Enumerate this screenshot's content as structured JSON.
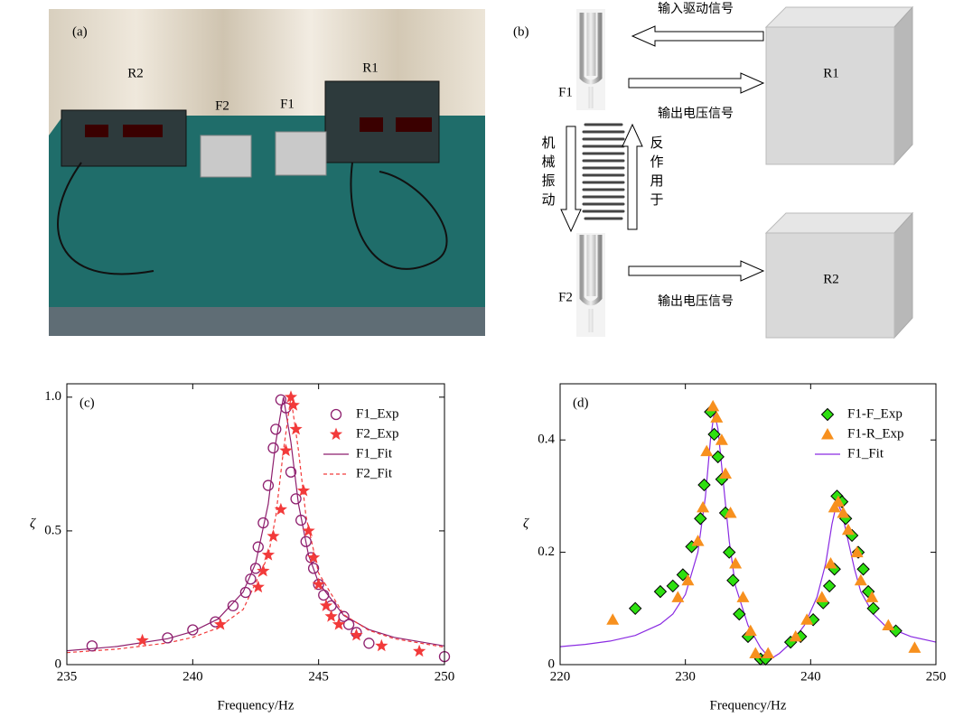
{
  "photo": {
    "panel_label": "(a)",
    "labels": [
      "R2",
      "F2",
      "F1",
      "R1"
    ]
  },
  "diagram": {
    "panel_label": "(b)",
    "forks": [
      "F1",
      "F2"
    ],
    "boxes": [
      "R1",
      "R2"
    ],
    "arrow_labels": [
      "输入驱动信号",
      "输出电压信号",
      "输出电压信号"
    ],
    "vertical_labels": [
      "机械振动",
      "反作用于"
    ]
  },
  "chart_data": [
    {
      "type": "scatter",
      "annotation": "(c)",
      "x_label": "Frequency/Hz",
      "y_label": "ζ",
      "xlim": [
        235,
        250
      ],
      "xticks": [
        235,
        240,
        245,
        250
      ],
      "ylim": [
        0,
        1.05
      ],
      "yticks": [
        0,
        0.5,
        {
          "value": 1,
          "label": "1.0"
        }
      ],
      "legend": "upper right",
      "series": [
        {
          "name": "F1_Exp",
          "type": "scatter",
          "marker": "circle",
          "color": "#8e1f6e",
          "x": [
            236.0,
            239.0,
            240.0,
            240.9,
            241.6,
            242.1,
            242.3,
            242.5,
            242.6,
            242.8,
            243.0,
            243.2,
            243.3,
            243.5,
            243.7,
            243.9,
            244.1,
            244.3,
            244.5,
            244.7,
            244.8,
            245.0,
            245.2,
            245.5,
            246.0,
            246.2,
            246.5,
            247.0,
            250.0
          ],
          "values": [
            0.07,
            0.1,
            0.13,
            0.16,
            0.22,
            0.27,
            0.32,
            0.36,
            0.44,
            0.53,
            0.67,
            0.81,
            0.88,
            0.99,
            0.96,
            0.72,
            0.62,
            0.54,
            0.46,
            0.4,
            0.36,
            0.3,
            0.26,
            0.22,
            0.18,
            0.15,
            0.12,
            0.08,
            0.03
          ]
        },
        {
          "name": "F2_Exp",
          "type": "scatter",
          "marker": "star",
          "color": "#f23a3a",
          "x": [
            238.0,
            241.1,
            242.6,
            242.8,
            243.0,
            243.2,
            243.5,
            243.7,
            243.9,
            244.0,
            244.1,
            244.4,
            244.6,
            244.8,
            245.0,
            245.3,
            245.5,
            245.8,
            246.5,
            247.5,
            249.0
          ],
          "values": [
            0.09,
            0.15,
            0.29,
            0.35,
            0.41,
            0.48,
            0.58,
            0.8,
            1.0,
            0.97,
            0.88,
            0.65,
            0.5,
            0.4,
            0.3,
            0.22,
            0.18,
            0.15,
            0.11,
            0.07,
            0.05
          ]
        },
        {
          "name": "F1_Fit",
          "type": "line",
          "dash": false,
          "color": "#8e1f6e",
          "x": [
            235,
            237,
            239,
            240,
            241,
            242,
            242.5,
            243,
            243.3,
            243.6,
            243.9,
            244.2,
            244.6,
            245,
            246,
            247,
            248,
            250
          ],
          "values": [
            0.052,
            0.068,
            0.097,
            0.124,
            0.17,
            0.271,
            0.379,
            0.6,
            0.832,
            1.0,
            0.832,
            0.6,
            0.41,
            0.306,
            0.184,
            0.131,
            0.102,
            0.07
          ]
        },
        {
          "name": "F2_Fit",
          "type": "line",
          "dash": true,
          "color": "#f23a3a",
          "x": [
            235,
            237,
            239,
            240,
            241,
            242,
            243,
            243.3,
            243.6,
            243.9,
            244.2,
            244.5,
            245,
            246,
            247,
            248,
            250
          ],
          "values": [
            0.045,
            0.058,
            0.081,
            0.102,
            0.137,
            0.206,
            0.406,
            0.555,
            0.8,
            1.0,
            0.8,
            0.555,
            0.342,
            0.187,
            0.128,
            0.097,
            0.065
          ]
        }
      ]
    },
    {
      "type": "scatter",
      "annotation": "(d)",
      "x_label": "Frequency/Hz",
      "y_label": "ζ",
      "xlim": [
        220,
        250
      ],
      "xticks": [
        220,
        230,
        240,
        250
      ],
      "ylim": [
        0,
        0.5
      ],
      "yticks": [
        0,
        0.2,
        0.4
      ],
      "legend": "upper right",
      "series": [
        {
          "name": "F1-F_Exp",
          "type": "scatter",
          "marker": "diamond",
          "color": "#2ee010",
          "x": [
            226.0,
            228.0,
            229.0,
            229.8,
            230.5,
            231.2,
            231.5,
            232.0,
            232.3,
            232.6,
            232.9,
            233.2,
            233.5,
            233.8,
            234.3,
            235.0,
            236.0,
            236.4,
            238.4,
            239.2,
            240.2,
            241.0,
            241.5,
            241.9,
            242.1,
            242.5,
            242.8,
            243.3,
            243.8,
            244.2,
            244.6,
            245.0,
            246.8
          ],
          "values": [
            0.1,
            0.13,
            0.14,
            0.16,
            0.21,
            0.26,
            0.32,
            0.45,
            0.41,
            0.37,
            0.33,
            0.27,
            0.2,
            0.15,
            0.09,
            0.05,
            0.01,
            0.01,
            0.04,
            0.05,
            0.08,
            0.11,
            0.14,
            0.17,
            0.3,
            0.29,
            0.26,
            0.23,
            0.2,
            0.17,
            0.13,
            0.1,
            0.06
          ]
        },
        {
          "name": "F1-R_Exp",
          "type": "scatter",
          "marker": "triangle",
          "color": "#f7901e",
          "x": [
            224.2,
            229.4,
            230.2,
            231.0,
            231.4,
            231.7,
            232.2,
            232.5,
            232.9,
            233.2,
            233.6,
            234.0,
            234.6,
            235.2,
            235.6,
            236.6,
            238.8,
            239.7,
            240.9,
            241.6,
            241.9,
            242.2,
            242.6,
            243.0,
            243.7,
            244.0,
            244.9,
            246.2,
            248.3
          ],
          "values": [
            0.08,
            0.12,
            0.15,
            0.22,
            0.28,
            0.38,
            0.46,
            0.44,
            0.4,
            0.34,
            0.27,
            0.18,
            0.12,
            0.06,
            0.02,
            0.02,
            0.05,
            0.08,
            0.12,
            0.18,
            0.28,
            0.29,
            0.27,
            0.24,
            0.2,
            0.15,
            0.12,
            0.07,
            0.03
          ]
        },
        {
          "name": "F1_Fit",
          "type": "line",
          "dash": false,
          "color": "#8a2be2",
          "x": [
            220,
            222,
            224,
            226,
            228,
            229,
            230,
            231,
            231.6,
            232,
            232.3,
            232.6,
            233,
            233.5,
            234,
            235,
            236,
            236.8,
            237.5,
            238.5,
            239.5,
            240.5,
            241.2,
            241.7,
            242.1,
            242.5,
            243,
            243.5,
            244,
            245,
            246,
            248,
            250
          ],
          "values": [
            0.032,
            0.036,
            0.042,
            0.052,
            0.072,
            0.09,
            0.125,
            0.2,
            0.3,
            0.4,
            0.45,
            0.42,
            0.33,
            0.22,
            0.14,
            0.07,
            0.03,
            0.01,
            0.02,
            0.04,
            0.07,
            0.12,
            0.18,
            0.25,
            0.29,
            0.27,
            0.22,
            0.17,
            0.13,
            0.09,
            0.068,
            0.05,
            0.04
          ]
        }
      ]
    }
  ]
}
